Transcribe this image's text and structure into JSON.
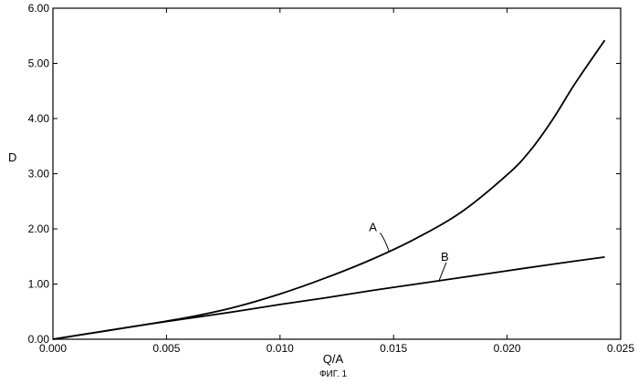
{
  "chart_data": {
    "type": "line",
    "title": "",
    "xlabel": "Q/A",
    "ylabel": "D",
    "caption": "ФИГ. 1",
    "xlim": [
      0.0,
      0.025
    ],
    "ylim": [
      0.0,
      6.0
    ],
    "x_ticks": [
      0.0,
      0.005,
      0.01,
      0.015,
      0.02,
      0.025
    ],
    "x_tick_labels": [
      "0.000",
      "0.005",
      "0.010",
      "0.015",
      "0.020",
      "0.025"
    ],
    "y_ticks": [
      0,
      1,
      2,
      3,
      4,
      5,
      6
    ],
    "y_tick_labels": [
      "0.00",
      "1.00",
      "2.00",
      "3.00",
      "4.00",
      "5.00",
      "6.00"
    ],
    "grid": false,
    "series": [
      {
        "name": "A",
        "x": [
          0.0,
          0.002,
          0.004,
          0.006,
          0.008,
          0.01,
          0.012,
          0.014,
          0.016,
          0.018,
          0.02,
          0.021,
          0.022,
          0.023,
          0.0243
        ],
        "y": [
          0.0,
          0.13,
          0.26,
          0.4,
          0.58,
          0.82,
          1.11,
          1.44,
          1.83,
          2.31,
          2.98,
          3.41,
          3.98,
          4.64,
          5.42
        ]
      },
      {
        "name": "B",
        "x": [
          0.0,
          0.002,
          0.004,
          0.006,
          0.008,
          0.01,
          0.012,
          0.014,
          0.016,
          0.018,
          0.02,
          0.022,
          0.0243
        ],
        "y": [
          0.0,
          0.13,
          0.26,
          0.38,
          0.5,
          0.63,
          0.75,
          0.88,
          1.0,
          1.12,
          1.24,
          1.36,
          1.49
        ]
      }
    ]
  }
}
